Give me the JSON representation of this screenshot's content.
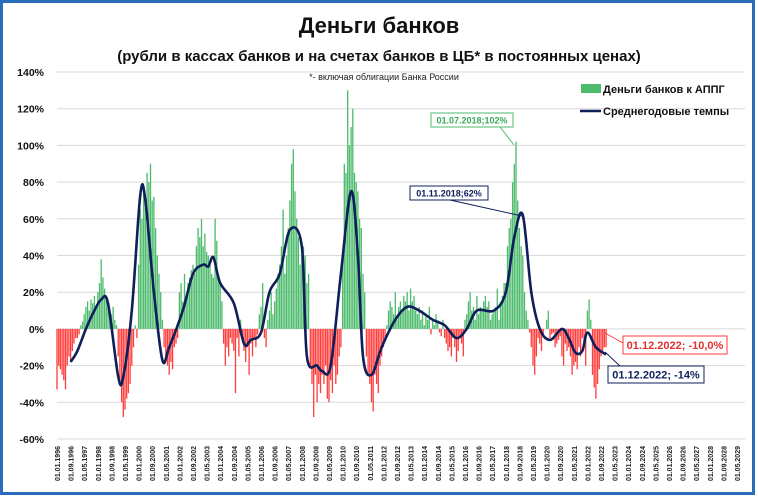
{
  "chart_data": {
    "type": "bar+line",
    "title": "Деньги банков",
    "subtitle": "(рубли в кассах банков и на счетах банков в ЦБ* в постоянных ценах)",
    "note": "*- включая облигации Банка России",
    "ylim": [
      -60,
      140
    ],
    "y_ticks": [
      "140%",
      "120%",
      "100%",
      "80%",
      "60%",
      "40%",
      "20%",
      "0%",
      "-20%",
      "-40%",
      "-60%"
    ],
    "y_tick_values": [
      140,
      120,
      100,
      80,
      60,
      40,
      20,
      0,
      -20,
      -40,
      -60
    ],
    "x_range": [
      "1996-01",
      "2029-09"
    ],
    "x_tick_labels": [
      "01.01.1996",
      "01.09.1996",
      "01.05.1997",
      "01.01.1998",
      "01.09.1998",
      "01.05.1999",
      "01.01.2000",
      "01.09.2000",
      "01.05.2001",
      "01.01.2002",
      "01.09.2002",
      "01.05.2003",
      "01.01.2004",
      "01.09.2004",
      "01.05.2005",
      "01.01.2006",
      "01.09.2006",
      "01.05.2007",
      "01.01.2008",
      "01.09.2008",
      "01.05.2009",
      "01.01.2010",
      "01.09.2010",
      "01.05.2011",
      "01.01.2012",
      "01.09.2012",
      "01.05.2013",
      "01.01.2014",
      "01.09.2014",
      "01.05.2015",
      "01.01.2016",
      "01.09.2016",
      "01.05.2017",
      "01.01.2018",
      "01.09.2018",
      "01.05.2019",
      "01.01.2020",
      "01.09.2020",
      "01.05.2021",
      "01.01.2022",
      "01.09.2022",
      "01.05.2023",
      "01.01.2024",
      "01.09.2024",
      "01.05.2025",
      "01.01.2026",
      "01.09.2026",
      "01.05.2027",
      "01.01.2028",
      "01.09.2028",
      "01.05.2029"
    ],
    "grid": "horizontal",
    "legend_placement": "top-right",
    "colors": {
      "positive_bar": "#4cbb6c",
      "negative_bar": "#ff3b3b",
      "line": "#0f1f5a",
      "frame": "#2a6ebb"
    },
    "bars": {
      "name": "Деньги банков к АППГ",
      "start": "1996-01",
      "frequency": "monthly",
      "values": [
        -33,
        -20,
        -22,
        -25,
        -28,
        -33,
        -20,
        -15,
        -18,
        -12,
        -8,
        -5,
        -5,
        -3,
        2,
        4,
        8,
        12,
        15,
        10,
        16,
        14,
        18,
        12,
        20,
        25,
        38,
        28,
        22,
        18,
        15,
        10,
        8,
        12,
        5,
        2,
        -15,
        -30,
        -40,
        -48,
        -44,
        -38,
        -35,
        -30,
        -20,
        -10,
        2,
        -5,
        35,
        65,
        60,
        78,
        70,
        85,
        80,
        90,
        70,
        72,
        55,
        40,
        30,
        20,
        5,
        -10,
        -15,
        -20,
        -25,
        -18,
        -22,
        -10,
        -8,
        -5,
        20,
        25,
        15,
        30,
        18,
        25,
        28,
        32,
        35,
        30,
        45,
        55,
        50,
        60,
        45,
        52,
        42,
        40,
        35,
        30,
        28,
        60,
        48,
        30,
        25,
        15,
        -8,
        -20,
        -10,
        -15,
        -5,
        -8,
        -12,
        -35,
        -5,
        -15,
        5,
        -5,
        -12,
        -18,
        -10,
        -25,
        -8,
        -15,
        -5,
        -10,
        -3,
        8,
        12,
        25,
        -5,
        -10,
        5,
        10,
        20,
        8,
        15,
        22,
        30,
        35,
        45,
        65,
        30,
        40,
        55,
        70,
        90,
        98,
        75,
        60,
        50,
        35,
        40,
        45,
        40,
        25,
        30,
        -20,
        -30,
        -48,
        -25,
        -40,
        -30,
        -35,
        -25,
        -30,
        -20,
        -38,
        -40,
        -28,
        -35,
        -20,
        -30,
        -25,
        -15,
        -10,
        40,
        90,
        85,
        130,
        100,
        110,
        120,
        85,
        80,
        75,
        60,
        55,
        30,
        20,
        -15,
        -25,
        -30,
        -40,
        -45,
        -25,
        -30,
        -35,
        -20,
        -15,
        -10,
        -5,
        2,
        10,
        15,
        12,
        8,
        20,
        5,
        12,
        15,
        10,
        18,
        15,
        20,
        10,
        22,
        15,
        18,
        10,
        8,
        12,
        5,
        10,
        2,
        8,
        5,
        12,
        -3,
        5,
        2,
        8,
        3,
        -2,
        -4,
        5,
        -5,
        -8,
        -12,
        -10,
        -15,
        -5,
        -10,
        -18,
        -12,
        -5,
        -8,
        -15,
        5,
        8,
        15,
        20,
        10,
        12,
        5,
        18,
        8,
        12,
        10,
        15,
        18,
        12,
        15,
        5,
        8,
        10,
        12,
        22,
        5,
        15,
        18,
        25,
        25,
        45,
        55,
        60,
        80,
        90,
        102,
        70,
        55,
        45,
        40,
        20,
        10,
        5,
        -2,
        -10,
        -20,
        -25,
        -15,
        -5,
        -8,
        -12,
        -3,
        0,
        5,
        10,
        -5,
        -3,
        -2,
        -10,
        -8,
        -6,
        -4,
        -15,
        -20,
        -8,
        -12,
        -10,
        -15,
        -25,
        -20,
        -18,
        -22,
        -10,
        -15,
        -5,
        -10,
        -20,
        10,
        16,
        5,
        -25,
        -32,
        -38,
        -30,
        -22,
        -15,
        -12,
        -10,
        -10
      ]
    },
    "line": {
      "name": "Среднегодовые темпы",
      "points": [
        [
          "1996-09",
          -18
        ],
        [
          "1997-01",
          -12
        ],
        [
          "1997-06",
          0
        ],
        [
          "1997-11",
          10
        ],
        [
          "1998-03",
          16
        ],
        [
          "1998-07",
          14
        ],
        [
          "1999-01",
          -26
        ],
        [
          "1999-04",
          -26
        ],
        [
          "1999-09",
          10
        ],
        [
          "2000-02",
          73
        ],
        [
          "2000-05",
          70
        ],
        [
          "2000-10",
          20
        ],
        [
          "2001-03",
          -17
        ],
        [
          "2001-07",
          -10
        ],
        [
          "2002-03",
          10
        ],
        [
          "2002-09",
          30
        ],
        [
          "2003-03",
          35
        ],
        [
          "2003-06",
          34
        ],
        [
          "2003-09",
          39
        ],
        [
          "2004-01",
          25
        ],
        [
          "2004-09",
          14
        ],
        [
          "2005-03",
          -8
        ],
        [
          "2005-07",
          -6
        ],
        [
          "2006-01",
          -2
        ],
        [
          "2006-06",
          20
        ],
        [
          "2006-12",
          30
        ],
        [
          "2007-06",
          54
        ],
        [
          "2008-01",
          45
        ],
        [
          "2008-04",
          -15
        ],
        [
          "2008-10",
          -20
        ],
        [
          "2009-01",
          -23
        ],
        [
          "2009-06",
          -20
        ],
        [
          "2009-12",
          30
        ],
        [
          "2010-06",
          75
        ],
        [
          "2010-10",
          40
        ],
        [
          "2011-01",
          -15
        ],
        [
          "2011-06",
          -25
        ],
        [
          "2011-12",
          -10
        ],
        [
          "2012-08",
          5
        ],
        [
          "2013-03",
          12
        ],
        [
          "2013-10",
          10
        ],
        [
          "2014-06",
          5
        ],
        [
          "2015-01",
          2
        ],
        [
          "2015-08",
          -5
        ],
        [
          "2016-02",
          0
        ],
        [
          "2016-08",
          10
        ],
        [
          "2017-06",
          10
        ],
        [
          "2018-01",
          20
        ],
        [
          "2018-06",
          50
        ],
        [
          "2018-11",
          62
        ],
        [
          "2019-04",
          20
        ],
        [
          "2019-09",
          0
        ],
        [
          "2020-03",
          -6
        ],
        [
          "2020-10",
          0
        ],
        [
          "2021-02",
          -5
        ],
        [
          "2021-06",
          -13
        ],
        [
          "2021-10",
          -12
        ],
        [
          "2022-01",
          -2
        ],
        [
          "2022-06",
          -10
        ],
        [
          "2022-12",
          -14
        ]
      ]
    },
    "annotations": [
      {
        "label": "01.07.2018;102%",
        "date": "2018-07",
        "value": 102,
        "series": "bars"
      },
      {
        "label": "01.11.2018;62%",
        "date": "2018-11",
        "value": 62,
        "series": "line"
      },
      {
        "label": "01.12.2022; -10,0%",
        "date": "2022-12",
        "value": -10,
        "series": "bars"
      },
      {
        "label": "01.12.2022; -14%",
        "date": "2022-12",
        "value": -14,
        "series": "line"
      }
    ]
  }
}
